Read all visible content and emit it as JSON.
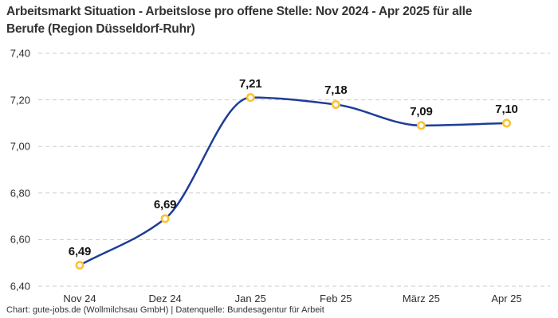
{
  "title": {
    "line1": "Arbeitsmarkt Situation - Arbeitslose pro offene Stelle: Nov 2024 - Apr 2025 für alle",
    "line2": "Berufe (Region Düsseldorf-Ruhr)"
  },
  "footer": "Chart: gute-jobs.de (Wollmilchsau GmbH) | Datenquelle: Bundesagentur für Arbeit",
  "chart_data": {
    "type": "line",
    "title": "Arbeitsmarkt Situation - Arbeitslose pro offene Stelle: Nov 2024 - Apr 2025 für alle Berufe (Region Düsseldorf-Ruhr)",
    "categories": [
      "Nov 24",
      "Dez 24",
      "Jan 25",
      "Feb 25",
      "März 25",
      "Apr 25"
    ],
    "values": [
      6.49,
      6.69,
      7.21,
      7.18,
      7.09,
      7.1
    ],
    "point_labels": [
      "6,49",
      "6,69",
      "7,21",
      "7,18",
      "7,09",
      "7,10"
    ],
    "y_ticks": {
      "values": [
        6.4,
        6.6,
        6.8,
        7.0,
        7.2,
        7.4
      ],
      "labels": [
        "6,40",
        "6,60",
        "6,80",
        "7,00",
        "7,20",
        "7,40"
      ]
    },
    "ylim": [
      6.4,
      7.4
    ],
    "xlabel": "",
    "ylabel": "",
    "grid": "horizontal-dashed",
    "legend": "none",
    "line_shape": "smooth-monotone",
    "colors": {
      "line": "#1e3d96",
      "marker_ring": "#fcc234",
      "marker_fill": "#ffffff",
      "grid": "#cbcbcb",
      "title_text": "#333333",
      "axis_text": "#2e2e2e",
      "point_label_text": "#141414",
      "footer_text": "#333333",
      "background": "#ffffff"
    }
  }
}
